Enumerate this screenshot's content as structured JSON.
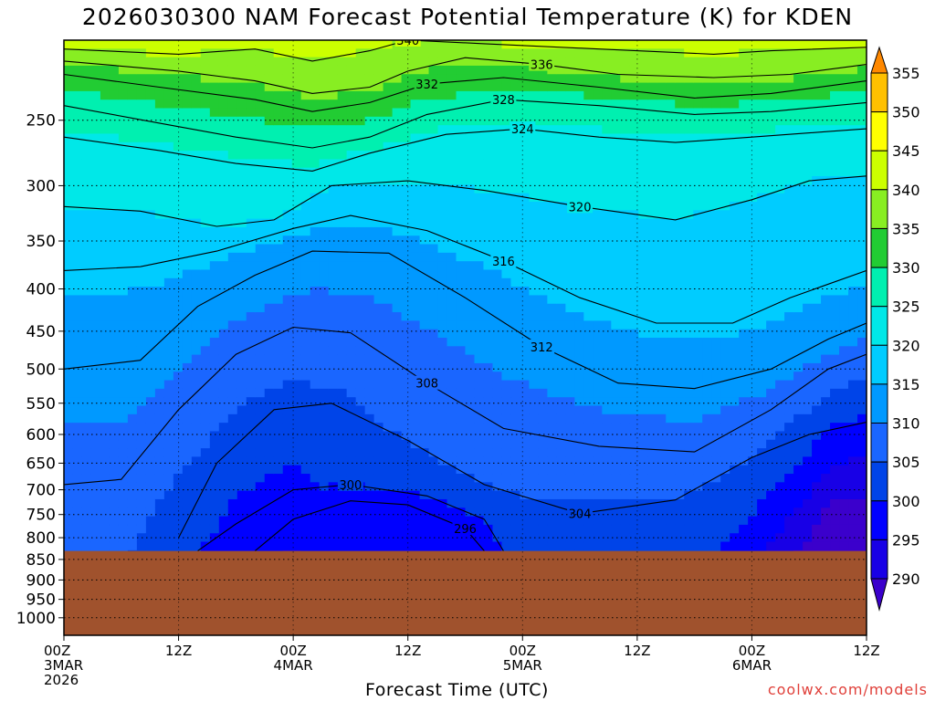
{
  "title": "2026030300 NAM Forecast Potential Temperature (K) for KDEN",
  "xlabel": "Forecast Time (UTC)",
  "credit": "coolwx.com/models",
  "colors": {
    "credit": "#e0403a",
    "ground": "#a0522d"
  },
  "chart_data": {
    "type": "contour",
    "title": "2026030300 NAM Forecast Potential Temperature (K) for KDEN",
    "xlabel": "Forecast Time (UTC)",
    "ylabel": "",
    "y_scale": "log-pressure",
    "y_inverted": true,
    "ylim": [
      1050,
      200
    ],
    "xlim": [
      0,
      84
    ],
    "grid": true,
    "y_ticks": [
      250,
      300,
      350,
      400,
      450,
      500,
      550,
      600,
      650,
      700,
      750,
      800,
      850,
      900,
      950,
      1000
    ],
    "x_ticks": [
      {
        "hour": 0,
        "lines": [
          "00Z",
          "3MAR",
          "2026"
        ]
      },
      {
        "hour": 12,
        "lines": [
          "12Z"
        ]
      },
      {
        "hour": 24,
        "lines": [
          "00Z",
          "4MAR"
        ]
      },
      {
        "hour": 36,
        "lines": [
          "12Z"
        ]
      },
      {
        "hour": 48,
        "lines": [
          "00Z",
          "5MAR"
        ]
      },
      {
        "hour": 60,
        "lines": [
          "12Z"
        ]
      },
      {
        "hour": 72,
        "lines": [
          "00Z",
          "6MAR"
        ]
      },
      {
        "hour": 84,
        "lines": [
          "12Z"
        ]
      }
    ],
    "colorbar": {
      "levels": [
        290,
        295,
        300,
        305,
        310,
        315,
        320,
        325,
        330,
        335,
        340,
        345,
        350,
        355
      ],
      "colors": [
        "#3b00cc",
        "#1800e6",
        "#0000ff",
        "#0044e8",
        "#1a66ff",
        "#0099ff",
        "#00ccff",
        "#00e8e8",
        "#00f0b0",
        "#22cc33",
        "#88ee22",
        "#ccff00",
        "#ffff00",
        "#ffc000",
        "#ff8800"
      ],
      "extend": "both",
      "labels": [
        "290",
        "295",
        "300",
        "305",
        "310",
        "315",
        "320",
        "325",
        "330",
        "335",
        "340",
        "345",
        "350",
        "355"
      ]
    },
    "ground_pressure": 830,
    "isentropes": [
      {
        "theta": 340,
        "points": [
          [
            0,
            205
          ],
          [
            12,
            208
          ],
          [
            20,
            205
          ],
          [
            26,
            212
          ],
          [
            32,
            206
          ],
          [
            36,
            200
          ],
          [
            44,
            202
          ],
          [
            56,
            205
          ],
          [
            68,
            208
          ],
          [
            74,
            206
          ],
          [
            84,
            204
          ]
        ]
      },
      {
        "theta": 336,
        "points": [
          [
            0,
            212
          ],
          [
            12,
            218
          ],
          [
            20,
            224
          ],
          [
            26,
            232
          ],
          [
            32,
            228
          ],
          [
            36,
            218
          ],
          [
            42,
            210
          ],
          [
            50,
            214
          ],
          [
            58,
            220
          ],
          [
            68,
            222
          ],
          [
            76,
            220
          ],
          [
            84,
            214
          ]
        ]
      },
      {
        "theta": 332,
        "points": [
          [
            0,
            220
          ],
          [
            10,
            228
          ],
          [
            20,
            236
          ],
          [
            26,
            244
          ],
          [
            32,
            238
          ],
          [
            38,
            226
          ],
          [
            46,
            222
          ],
          [
            56,
            228
          ],
          [
            66,
            235
          ],
          [
            74,
            232
          ],
          [
            84,
            224
          ]
        ]
      },
      {
        "theta": 328,
        "points": [
          [
            0,
            240
          ],
          [
            10,
            252
          ],
          [
            18,
            262
          ],
          [
            26,
            270
          ],
          [
            32,
            262
          ],
          [
            38,
            246
          ],
          [
            46,
            236
          ],
          [
            56,
            240
          ],
          [
            66,
            246
          ],
          [
            74,
            244
          ],
          [
            84,
            238
          ]
        ]
      },
      {
        "theta": 324,
        "points": [
          [
            0,
            262
          ],
          [
            10,
            272
          ],
          [
            18,
            282
          ],
          [
            26,
            288
          ],
          [
            32,
            274
          ],
          [
            40,
            260
          ],
          [
            48,
            256
          ],
          [
            56,
            262
          ],
          [
            64,
            266
          ],
          [
            72,
            262
          ],
          [
            80,
            258
          ],
          [
            84,
            256
          ]
        ]
      },
      {
        "theta": 320,
        "points": [
          [
            0,
            318
          ],
          [
            8,
            322
          ],
          [
            16,
            336
          ],
          [
            22,
            330
          ],
          [
            28,
            300
          ],
          [
            36,
            296
          ],
          [
            44,
            304
          ],
          [
            54,
            318
          ],
          [
            64,
            330
          ],
          [
            72,
            312
          ],
          [
            78,
            296
          ],
          [
            84,
            292
          ]
        ]
      },
      {
        "theta": 316,
        "points": [
          [
            0,
            380
          ],
          [
            8,
            376
          ],
          [
            16,
            360
          ],
          [
            24,
            338
          ],
          [
            30,
            326
          ],
          [
            38,
            340
          ],
          [
            46,
            370
          ],
          [
            54,
            410
          ],
          [
            62,
            440
          ],
          [
            70,
            440
          ],
          [
            76,
            410
          ],
          [
            84,
            380
          ]
        ]
      },
      {
        "theta": 312,
        "points": [
          [
            0,
            500
          ],
          [
            8,
            488
          ],
          [
            14,
            420
          ],
          [
            20,
            385
          ],
          [
            26,
            360
          ],
          [
            34,
            362
          ],
          [
            42,
            410
          ],
          [
            50,
            470
          ],
          [
            58,
            520
          ],
          [
            66,
            528
          ],
          [
            74,
            500
          ],
          [
            80,
            460
          ],
          [
            84,
            440
          ]
        ]
      },
      {
        "theta": 308,
        "points": [
          [
            0,
            690
          ],
          [
            6,
            680
          ],
          [
            12,
            560
          ],
          [
            18,
            480
          ],
          [
            24,
            445
          ],
          [
            30,
            452
          ],
          [
            38,
            520
          ],
          [
            46,
            590
          ],
          [
            56,
            620
          ],
          [
            66,
            630
          ],
          [
            74,
            560
          ],
          [
            80,
            500
          ],
          [
            84,
            480
          ]
        ]
      },
      {
        "theta": 304,
        "points": [
          [
            12,
            800
          ],
          [
            16,
            650
          ],
          [
            22,
            560
          ],
          [
            28,
            550
          ],
          [
            36,
            610
          ],
          [
            44,
            690
          ],
          [
            54,
            748
          ],
          [
            64,
            720
          ],
          [
            72,
            640
          ],
          [
            78,
            600
          ],
          [
            84,
            580
          ]
        ]
      },
      {
        "theta": 300,
        "points": [
          [
            14,
            830
          ],
          [
            18,
            770
          ],
          [
            24,
            700
          ],
          [
            30,
            690
          ],
          [
            38,
            712
          ],
          [
            44,
            760
          ],
          [
            46,
            830
          ]
        ]
      },
      {
        "theta": 296,
        "points": [
          [
            20,
            830
          ],
          [
            24,
            760
          ],
          [
            30,
            722
          ],
          [
            36,
            730
          ],
          [
            42,
            780
          ],
          [
            44,
            830
          ]
        ]
      }
    ]
  }
}
